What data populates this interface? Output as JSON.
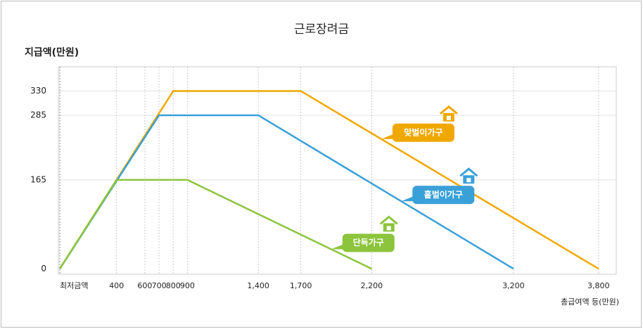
{
  "chart_data": {
    "type": "line",
    "title": "근로장려금",
    "y_label": "지급액(만원)",
    "x_label": "총급여액 등(만원)",
    "series": [
      {
        "name": "맞벌이가구",
        "color": "#f0a800",
        "x": [
          0,
          800,
          1700,
          3800
        ],
        "values": [
          0,
          330,
          330,
          0
        ]
      },
      {
        "name": "홑벌이가구",
        "color": "#3aa0d8",
        "x": [
          0,
          700,
          1400,
          3200
        ],
        "values": [
          0,
          285,
          285,
          0
        ]
      },
      {
        "name": "단독가구",
        "color": "#8cc43c",
        "x": [
          0,
          400,
          900,
          2200
        ],
        "values": [
          0,
          165,
          165,
          0
        ]
      }
    ],
    "xlim": [
      -10,
      3925
    ],
    "xticks": [
      {
        "value": 0,
        "label": "최저금액"
      },
      400,
      600,
      700,
      800,
      900,
      {
        "value": 1400,
        "label": "1,400"
      },
      {
        "value": 1700,
        "label": "1,700"
      },
      {
        "value": 2200,
        "label": "2,200"
      },
      {
        "value": 3200,
        "label": "3,200"
      },
      {
        "value": 3800,
        "label": "3,800"
      }
    ],
    "ylim": [
      -10,
      375
    ],
    "yticks": [
      0,
      165,
      285,
      330
    ],
    "grid": true
  }
}
